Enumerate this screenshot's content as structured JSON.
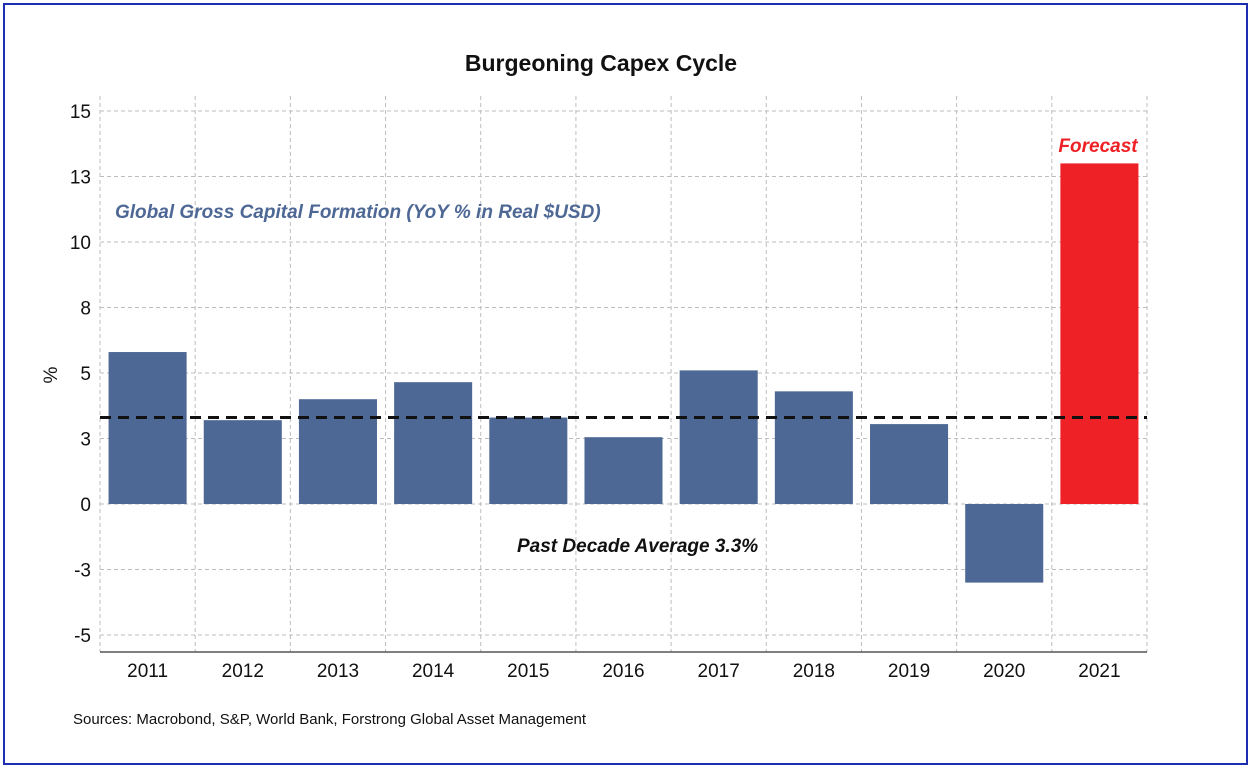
{
  "chart_data": {
    "type": "bar",
    "title": "Burgeoning Capex Cycle",
    "ylabel": "%",
    "xlabel": "",
    "categories": [
      "2011",
      "2012",
      "2013",
      "2014",
      "2015",
      "2016",
      "2017",
      "2018",
      "2019",
      "2020",
      "2021"
    ],
    "series": [
      {
        "name": "Global Gross Capital Formation (YoY % in Real $USD)",
        "values": [
          5.8,
          3.2,
          4.0,
          4.65,
          3.3,
          2.55,
          5.1,
          4.3,
          3.05,
          -3.0,
          13.0
        ],
        "color": "#4e6895",
        "forecast_color": "#ee2226",
        "forecast_categories": [
          "2021"
        ]
      }
    ],
    "ylim": [
      -5.5,
      15
    ],
    "yticks": [
      15,
      12.5,
      10,
      7.5,
      5,
      2.5,
      0,
      -2.5,
      -5
    ],
    "ytick_labels": [
      "15",
      "13",
      "10",
      "8",
      "5",
      "3",
      "0",
      "-3",
      "-5"
    ],
    "average_line": {
      "value": 3.3,
      "label": "Past Decade Average 3.3%"
    },
    "forecast_label": "Forecast",
    "series_label": "Global Gross Capital Formation (YoY % in Real $USD)",
    "grid": true,
    "source": "Sources: Macrobond, S&P, World Bank, Forstrong Global Asset Management",
    "colors": {
      "bar": "#4e6895",
      "forecast": "#ee2226",
      "series_label": "#4e6895",
      "border": "#1c2fb3",
      "grid": "#bdbdbd"
    }
  }
}
